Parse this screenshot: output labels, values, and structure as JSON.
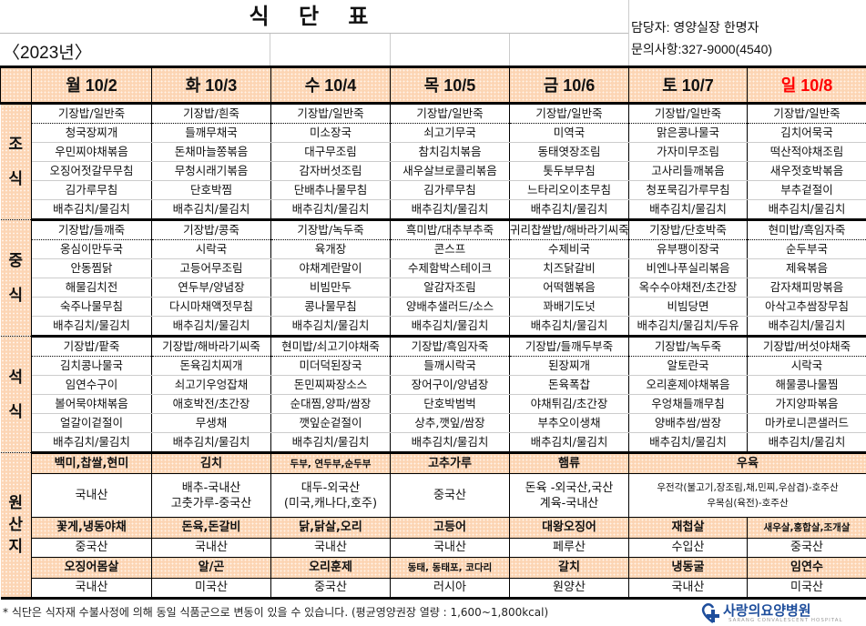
{
  "header": {
    "title": "식 단 표",
    "year": "〈2023년〉",
    "manager": "담당자: 영양실장 한명자",
    "contact": "문의사항:327-9000(4540)"
  },
  "days": [
    "월 10/2",
    "화 10/3",
    "수 10/4",
    "목 10/5",
    "금 10/6",
    "토 10/7",
    "일 10/8"
  ],
  "colors": {
    "header_bg": "#fcd5b4",
    "sunday": "#ff0000",
    "logo": "#1e4e9c"
  },
  "meals": [
    {
      "label": "조식",
      "rows": [
        [
          "기장밥/일반죽",
          "기장밥/흰죽",
          "기장밥/일반죽",
          "기장밥/일반죽",
          "기장밥/일반죽",
          "기장밥/일반죽",
          "기장밥/일반죽"
        ],
        [
          "청국장찌개",
          "들깨무채국",
          "미소장국",
          "쇠고기무국",
          "미역국",
          "맑은콩나물국",
          "김치어묵국"
        ],
        [
          "우민찌야채볶음",
          "돈채마늘쫑볶음",
          "대구무조림",
          "참치김치볶음",
          "동태엿장조림",
          "가자미무조림",
          "떡산적야채조림"
        ],
        [
          "오징어젓갈무무침",
          "무청시래기볶음",
          "감자버섯조림",
          "새우살브로콜리볶음",
          "톳두부무침",
          "고사리들깨볶음",
          "새우젓호박볶음"
        ],
        [
          "김가루무침",
          "단호박찜",
          "단배추나물무침",
          "김가루무침",
          "느타리오이초무침",
          "청포묵김가루무침",
          "부추겉절이"
        ],
        [
          "배추김치/물김치",
          "배추김치/물김치",
          "배추김치/물김치",
          "배추김치/물김치",
          "배추김치/물김치",
          "배추김치/물김치",
          "배추김치/물김치"
        ]
      ]
    },
    {
      "label": "중식",
      "rows": [
        [
          "기장밥/들깨죽",
          "기장밥/콩죽",
          "기장밥/녹두죽",
          "흑미밥/대추부추죽",
          "귀리찹쌀밥/해바라기씨죽",
          "기장밥/단호박죽",
          "현미밥/흑임자죽"
        ],
        [
          "옹심이만두국",
          "시락국",
          "육개장",
          "콘스프",
          "수제비국",
          "유부팽이장국",
          "순두부국"
        ],
        [
          "안동찜닭",
          "고등어무조림",
          "야채계란말이",
          "수제함박스테이크",
          "치즈닭갈비",
          "비엔나푸실리볶음",
          "제육볶음"
        ],
        [
          "해물김치전",
          "연두부/양념장",
          "비빔만두",
          "알감자조림",
          "어떡햄볶음",
          "옥수수야채전/초간장",
          "감자채피망볶음"
        ],
        [
          "숙주나물무침",
          "다시마채액젓무침",
          "콩나물무침",
          "양배추샐러드/소스",
          "꽈배기도넛",
          "비빔당면",
          "아삭고추쌈장무침"
        ],
        [
          "배추김치/물김치",
          "배추김치/물김치",
          "배추김치/물김치",
          "배추김치/물김치",
          "배추김치/물김치",
          "배추김치/물김치/두유",
          "배추김치/물김치"
        ]
      ]
    },
    {
      "label": "석식",
      "rows": [
        [
          "기장밥/팥죽",
          "기장밥/해바라기씨죽",
          "현미밥/쇠고기야채죽",
          "기장밥/흑임자죽",
          "기장밥/들깨두부죽",
          "기장밥/녹두죽",
          "기장밥/버섯야채죽"
        ],
        [
          "김치콩나물국",
          "돈육김치찌개",
          "미더덕된장국",
          "들깨시락국",
          "된장찌개",
          "알토란국",
          "시락국"
        ],
        [
          "임연수구이",
          "쇠고기우엉잡채",
          "돈민찌짜장소스",
          "장어구이/양념장",
          "돈육폭찹",
          "오리훈제야채볶음",
          "해물콩나물찜"
        ],
        [
          "볼어묵야채볶음",
          "애호박전/초간장",
          "순대찜,양파/쌈장",
          "단호박범벅",
          "야채튀김/초간장",
          "우엉채들깨무침",
          "가지양파볶음"
        ],
        [
          "얼갈이겉절이",
          "무생채",
          "깻잎순겉절이",
          "상추,깻잎/쌈장",
          "부추오이생채",
          "양배추쌈/쌈장",
          "마카로니콘샐러드"
        ],
        [
          "배추김치/물김치",
          "배추김치/물김치",
          "배추김치/물김치",
          "배추김치/물김치",
          "배추김치/물김치",
          "배추김치/물김치",
          "배추김치/물김치"
        ]
      ]
    }
  ],
  "origin": {
    "label": "원산지",
    "row1": [
      {
        "item": "백미,찹쌀,현미",
        "origin": "국내산"
      },
      {
        "item": "김치",
        "origin": "배추-국내산\n고춧가루-중국산"
      },
      {
        "item": "두부, 연두부,순두부",
        "origin": "대두-외국산\n(미국,캐나다,호주)"
      },
      {
        "item": "고추가루",
        "origin": "중국산"
      },
      {
        "item": "햄류",
        "origin": "돈육 -외국산,국산\n계육-국내산"
      },
      {
        "item": "우육",
        "origin": "우전각(불고기,장조림,채,민찌,우삼겹)-호주산\n우목심(육전)-호주산"
      }
    ],
    "row2": [
      {
        "item": "꽃게,냉동야채",
        "origin": "중국산"
      },
      {
        "item": "돈육,돈갈비",
        "origin": "국내산"
      },
      {
        "item": "닭,닭살,오리",
        "origin": "국내산"
      },
      {
        "item": "고등어",
        "origin": "국내산"
      },
      {
        "item": "대왕오징어",
        "origin": "페루산"
      },
      {
        "item": "재첩살",
        "origin": "수입산"
      },
      {
        "item": "새우살,홍합살,조개살",
        "origin": "중국산"
      }
    ],
    "row3": [
      {
        "item": "오징어몸살",
        "origin": "국내산"
      },
      {
        "item": "알/곤",
        "origin": "미국산"
      },
      {
        "item": "오리훈제",
        "origin": "중국산"
      },
      {
        "item": "동태, 동태포, 코다리",
        "origin": "러시아"
      },
      {
        "item": "갈치",
        "origin": "원양산"
      },
      {
        "item": "냉동굴",
        "origin": "국내산"
      },
      {
        "item": "임연수",
        "origin": "미국산"
      }
    ]
  },
  "footer": {
    "note": "* 식단은 식자재 수불사정에 의해 동일 식품군으로 변동이 있을 수 있습니다. (평균영양권장 열량 : 1,600~1,800kcal)"
  },
  "logo": {
    "name": "사랑의요양병원",
    "subtitle": "SARANG CONVALESCENT HOSPITAL",
    "icon": "heart-cross-icon"
  }
}
